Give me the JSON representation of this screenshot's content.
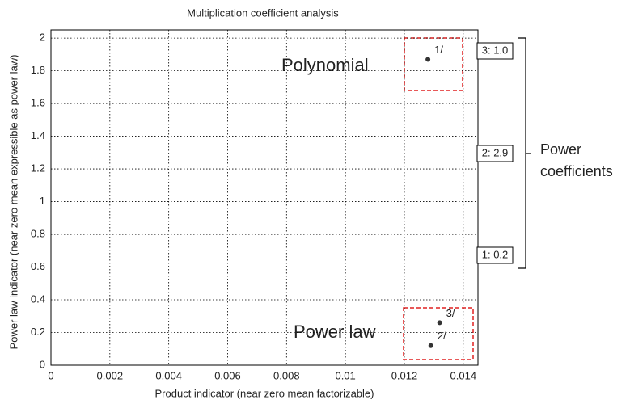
{
  "chart_data": {
    "type": "scatter",
    "title": "Multiplication coefficient analysis",
    "x_label": "Product indicator (near zero mean factorizable)",
    "y_label": "Power law indicator (near zero mean expressible as power law)",
    "series": [
      {
        "color": "#333333",
        "x": [
          0.0128,
          0.0132,
          0.0129
        ],
        "values": [
          1.87,
          0.26,
          0.12
        ],
        "labels": [
          "1/",
          "3/",
          "2/"
        ]
      }
    ],
    "xlim": [
      0,
      0.0145
    ],
    "xticks": [
      0,
      0.002,
      0.004,
      0.006,
      0.008,
      0.01,
      0.012,
      0.014
    ],
    "ylim": [
      0,
      2.05
    ],
    "yticks": [
      0,
      0.2,
      0.4,
      0.6,
      0.8,
      1,
      1.2,
      1.4,
      1.6,
      1.8,
      2
    ],
    "grid": true,
    "annotations": [
      "Polynomial",
      "Power law"
    ],
    "coefficient_labels": [
      "3: 1.0",
      "2: 2.9",
      "1: 0.2"
    ],
    "coefficient_title": "Power coefficients"
  }
}
